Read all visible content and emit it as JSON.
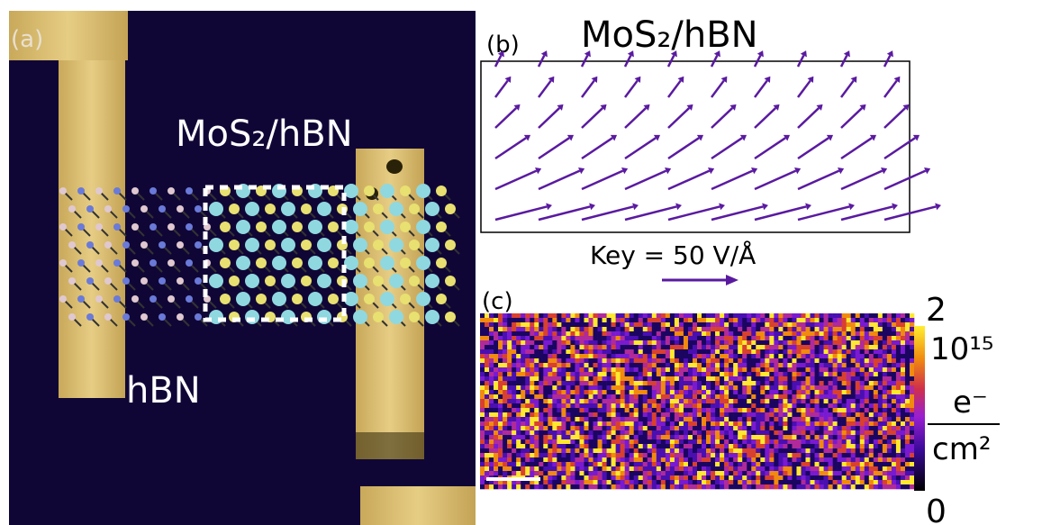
{
  "panel_a": {
    "label": "(a)",
    "region_label": "MoS₂/hBN",
    "material_label": "hBN"
  },
  "panel_b": {
    "label": "(b)",
    "title": "MoS₂/hBN",
    "key": "Key = 50 V/Å"
  },
  "panel_c": {
    "label": "(c)"
  },
  "colorbar": {
    "max": "2",
    "min": "0",
    "scale": "10¹⁵",
    "numerator": "e⁻",
    "denominator": "cm²"
  }
}
